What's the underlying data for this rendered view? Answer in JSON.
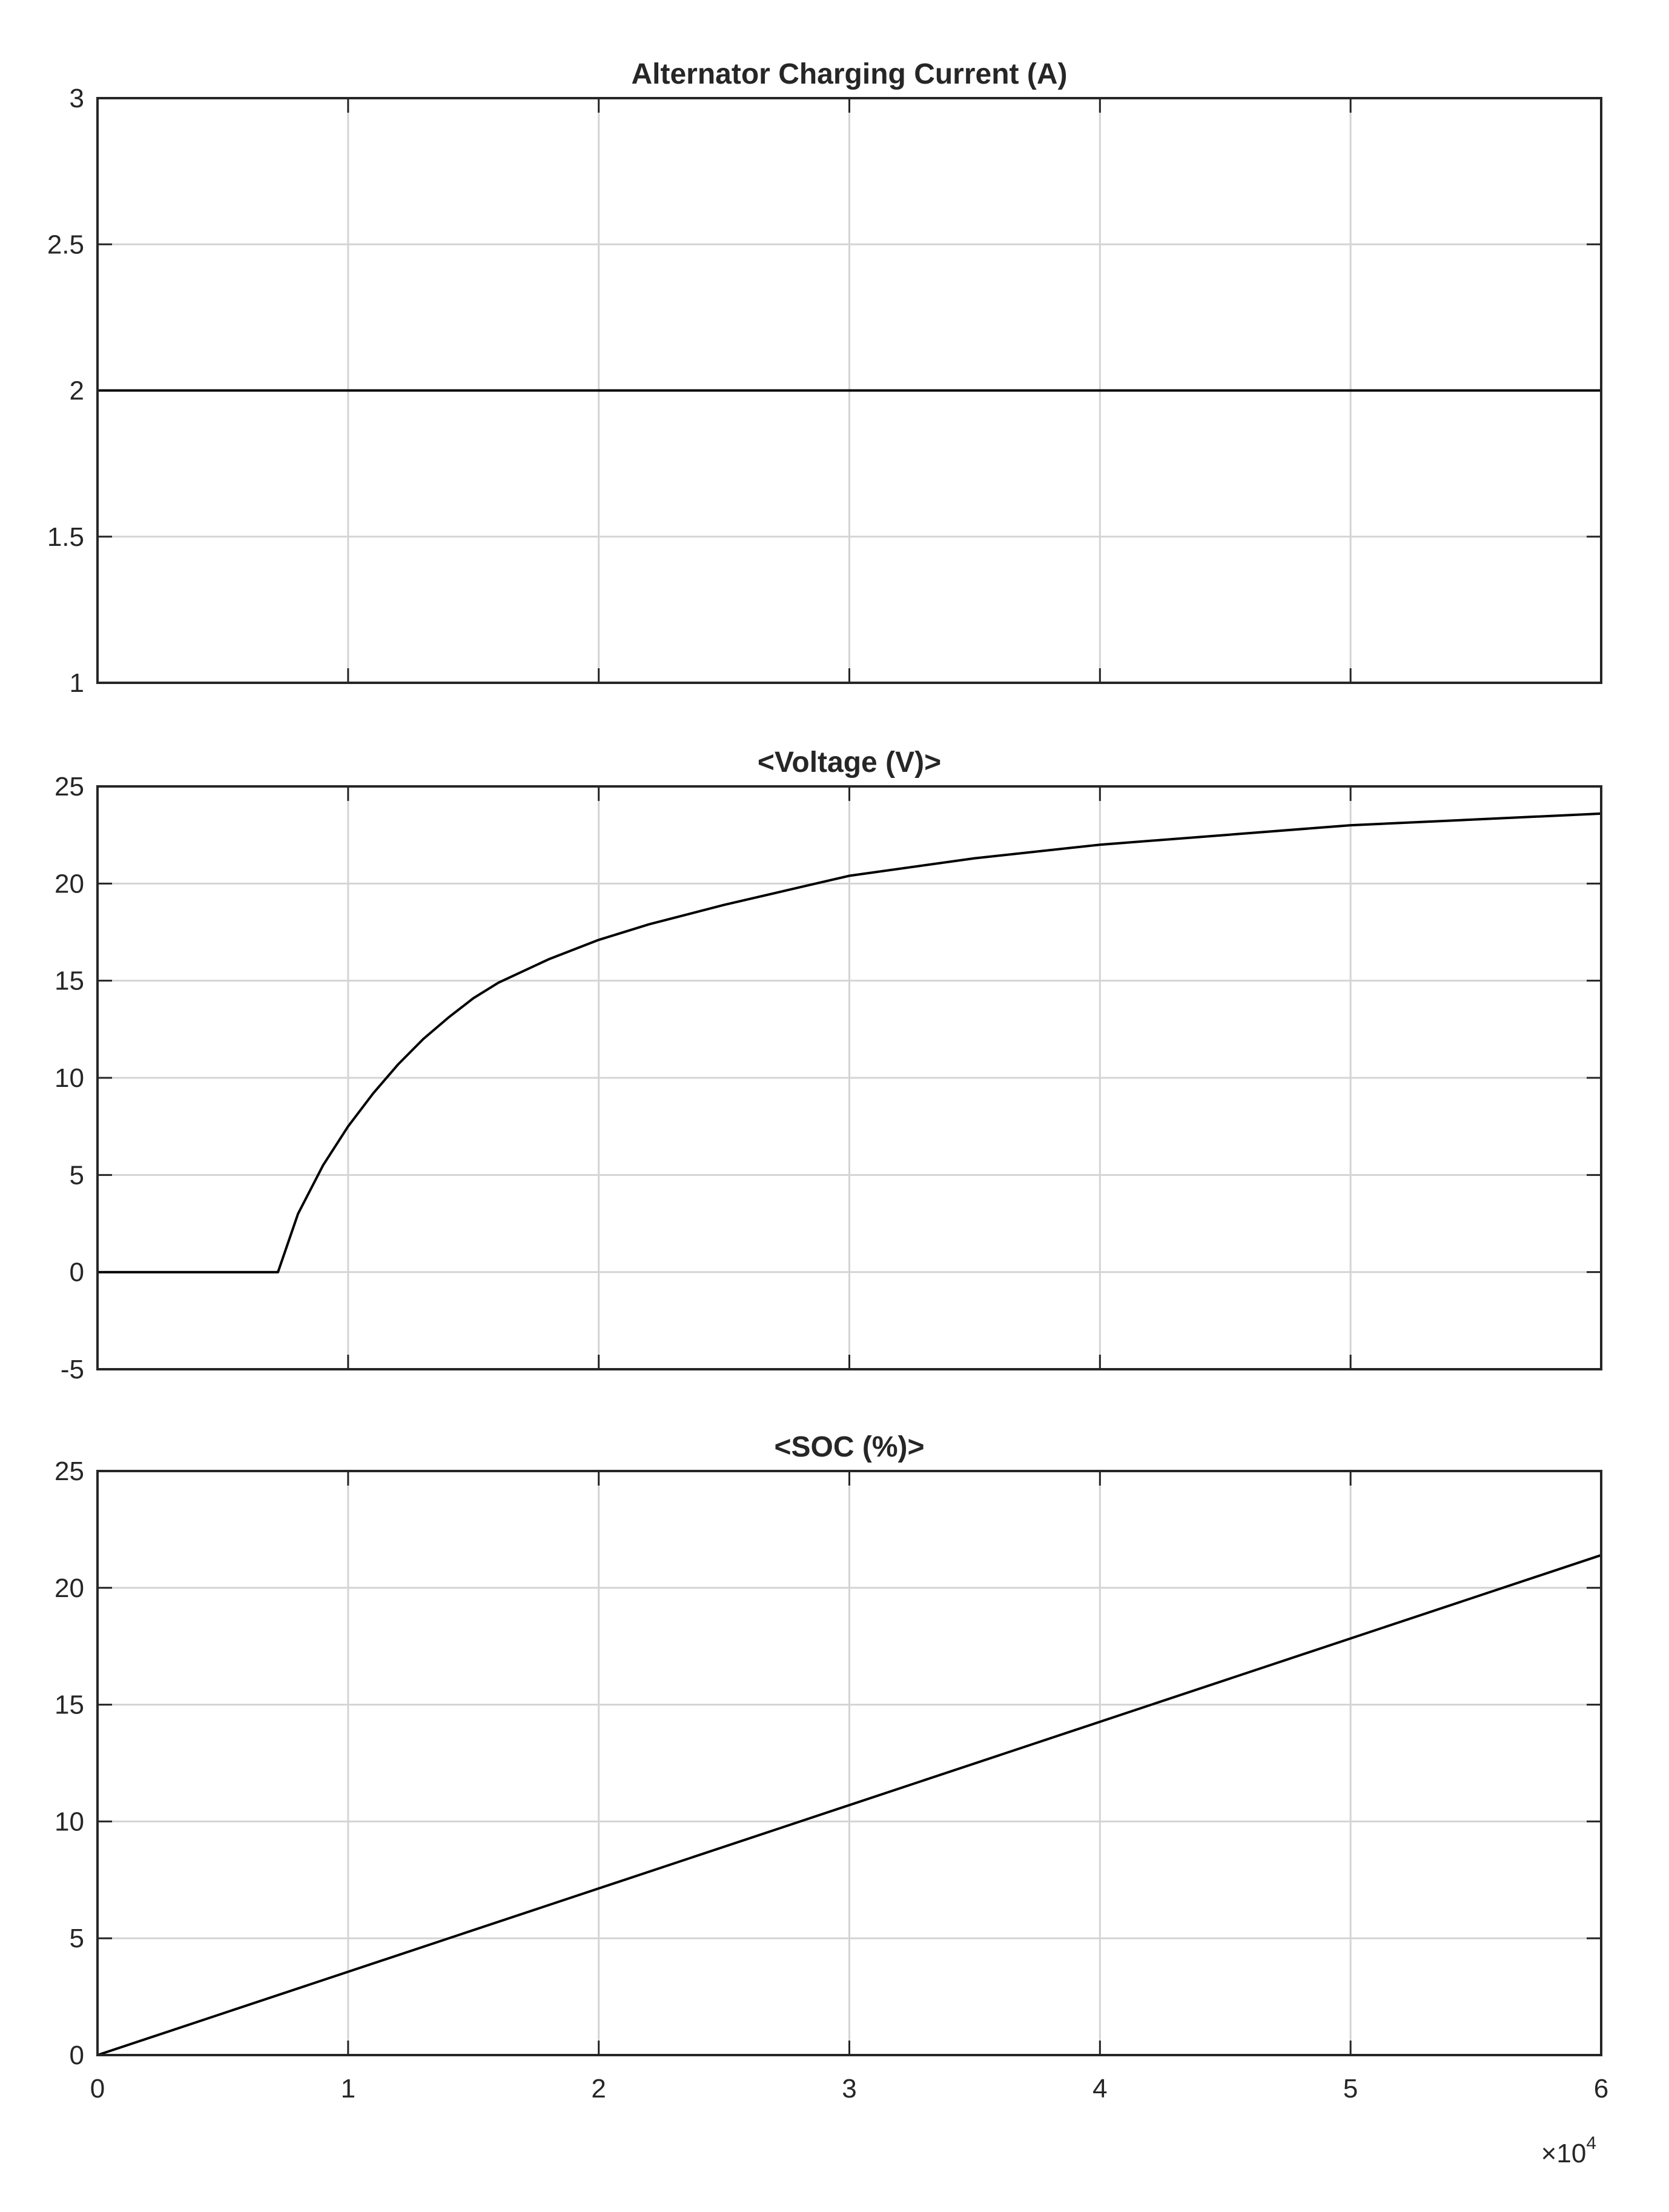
{
  "chart_data": [
    {
      "type": "line",
      "title": "Alternator Charging Current (A)",
      "xlabel": "",
      "ylabel": "",
      "xlim": [
        0,
        60000
      ],
      "ylim": [
        1,
        3
      ],
      "grid": true,
      "x_ticks": [
        0,
        10000,
        20000,
        30000,
        40000,
        50000,
        60000
      ],
      "y_ticks": [
        1,
        1.5,
        2,
        2.5,
        3
      ],
      "y_tick_labels": [
        "1",
        "1.5",
        "2",
        "2.5",
        "3"
      ],
      "series": [
        {
          "x": [
            0,
            60000
          ],
          "y": [
            2,
            2
          ]
        }
      ]
    },
    {
      "type": "line",
      "title": "<Voltage (V)>",
      "xlabel": "",
      "ylabel": "",
      "xlim": [
        0,
        60000
      ],
      "ylim": [
        -5,
        25
      ],
      "grid": true,
      "x_ticks": [
        0,
        10000,
        20000,
        30000,
        40000,
        50000,
        60000
      ],
      "y_ticks": [
        -5,
        0,
        5,
        10,
        15,
        20,
        25
      ],
      "y_tick_labels": [
        "-5",
        "0",
        "5",
        "10",
        "15",
        "20",
        "25"
      ],
      "series": [
        {
          "x": [
            0,
            7200,
            8000,
            9000,
            10000,
            11000,
            12000,
            13000,
            14000,
            15000,
            16000,
            18000,
            20000,
            22000,
            25000,
            28000,
            30000,
            35000,
            40000,
            45000,
            50000,
            55000,
            60000
          ],
          "y": [
            0,
            0,
            3.0,
            5.5,
            7.5,
            9.2,
            10.7,
            12.0,
            13.1,
            14.1,
            14.9,
            16.1,
            17.1,
            17.9,
            18.9,
            19.8,
            20.4,
            21.3,
            22.0,
            22.5,
            23.0,
            23.3,
            23.6
          ]
        }
      ]
    },
    {
      "type": "line",
      "title": "<SOC (%)>",
      "xlabel": "",
      "ylabel": "",
      "xlim": [
        0,
        60000
      ],
      "ylim": [
        0,
        25
      ],
      "grid": true,
      "x_ticks": [
        0,
        10000,
        20000,
        30000,
        40000,
        50000,
        60000
      ],
      "x_tick_labels": [
        "0",
        "1",
        "2",
        "3",
        "4",
        "5",
        "6"
      ],
      "x_exponent_base": "×10",
      "x_exponent_power": "4",
      "y_ticks": [
        0,
        5,
        10,
        15,
        20,
        25
      ],
      "y_tick_labels": [
        "0",
        "5",
        "10",
        "15",
        "20",
        "25"
      ],
      "series": [
        {
          "x": [
            0,
            60000
          ],
          "y": [
            0,
            21.4
          ]
        }
      ]
    }
  ]
}
